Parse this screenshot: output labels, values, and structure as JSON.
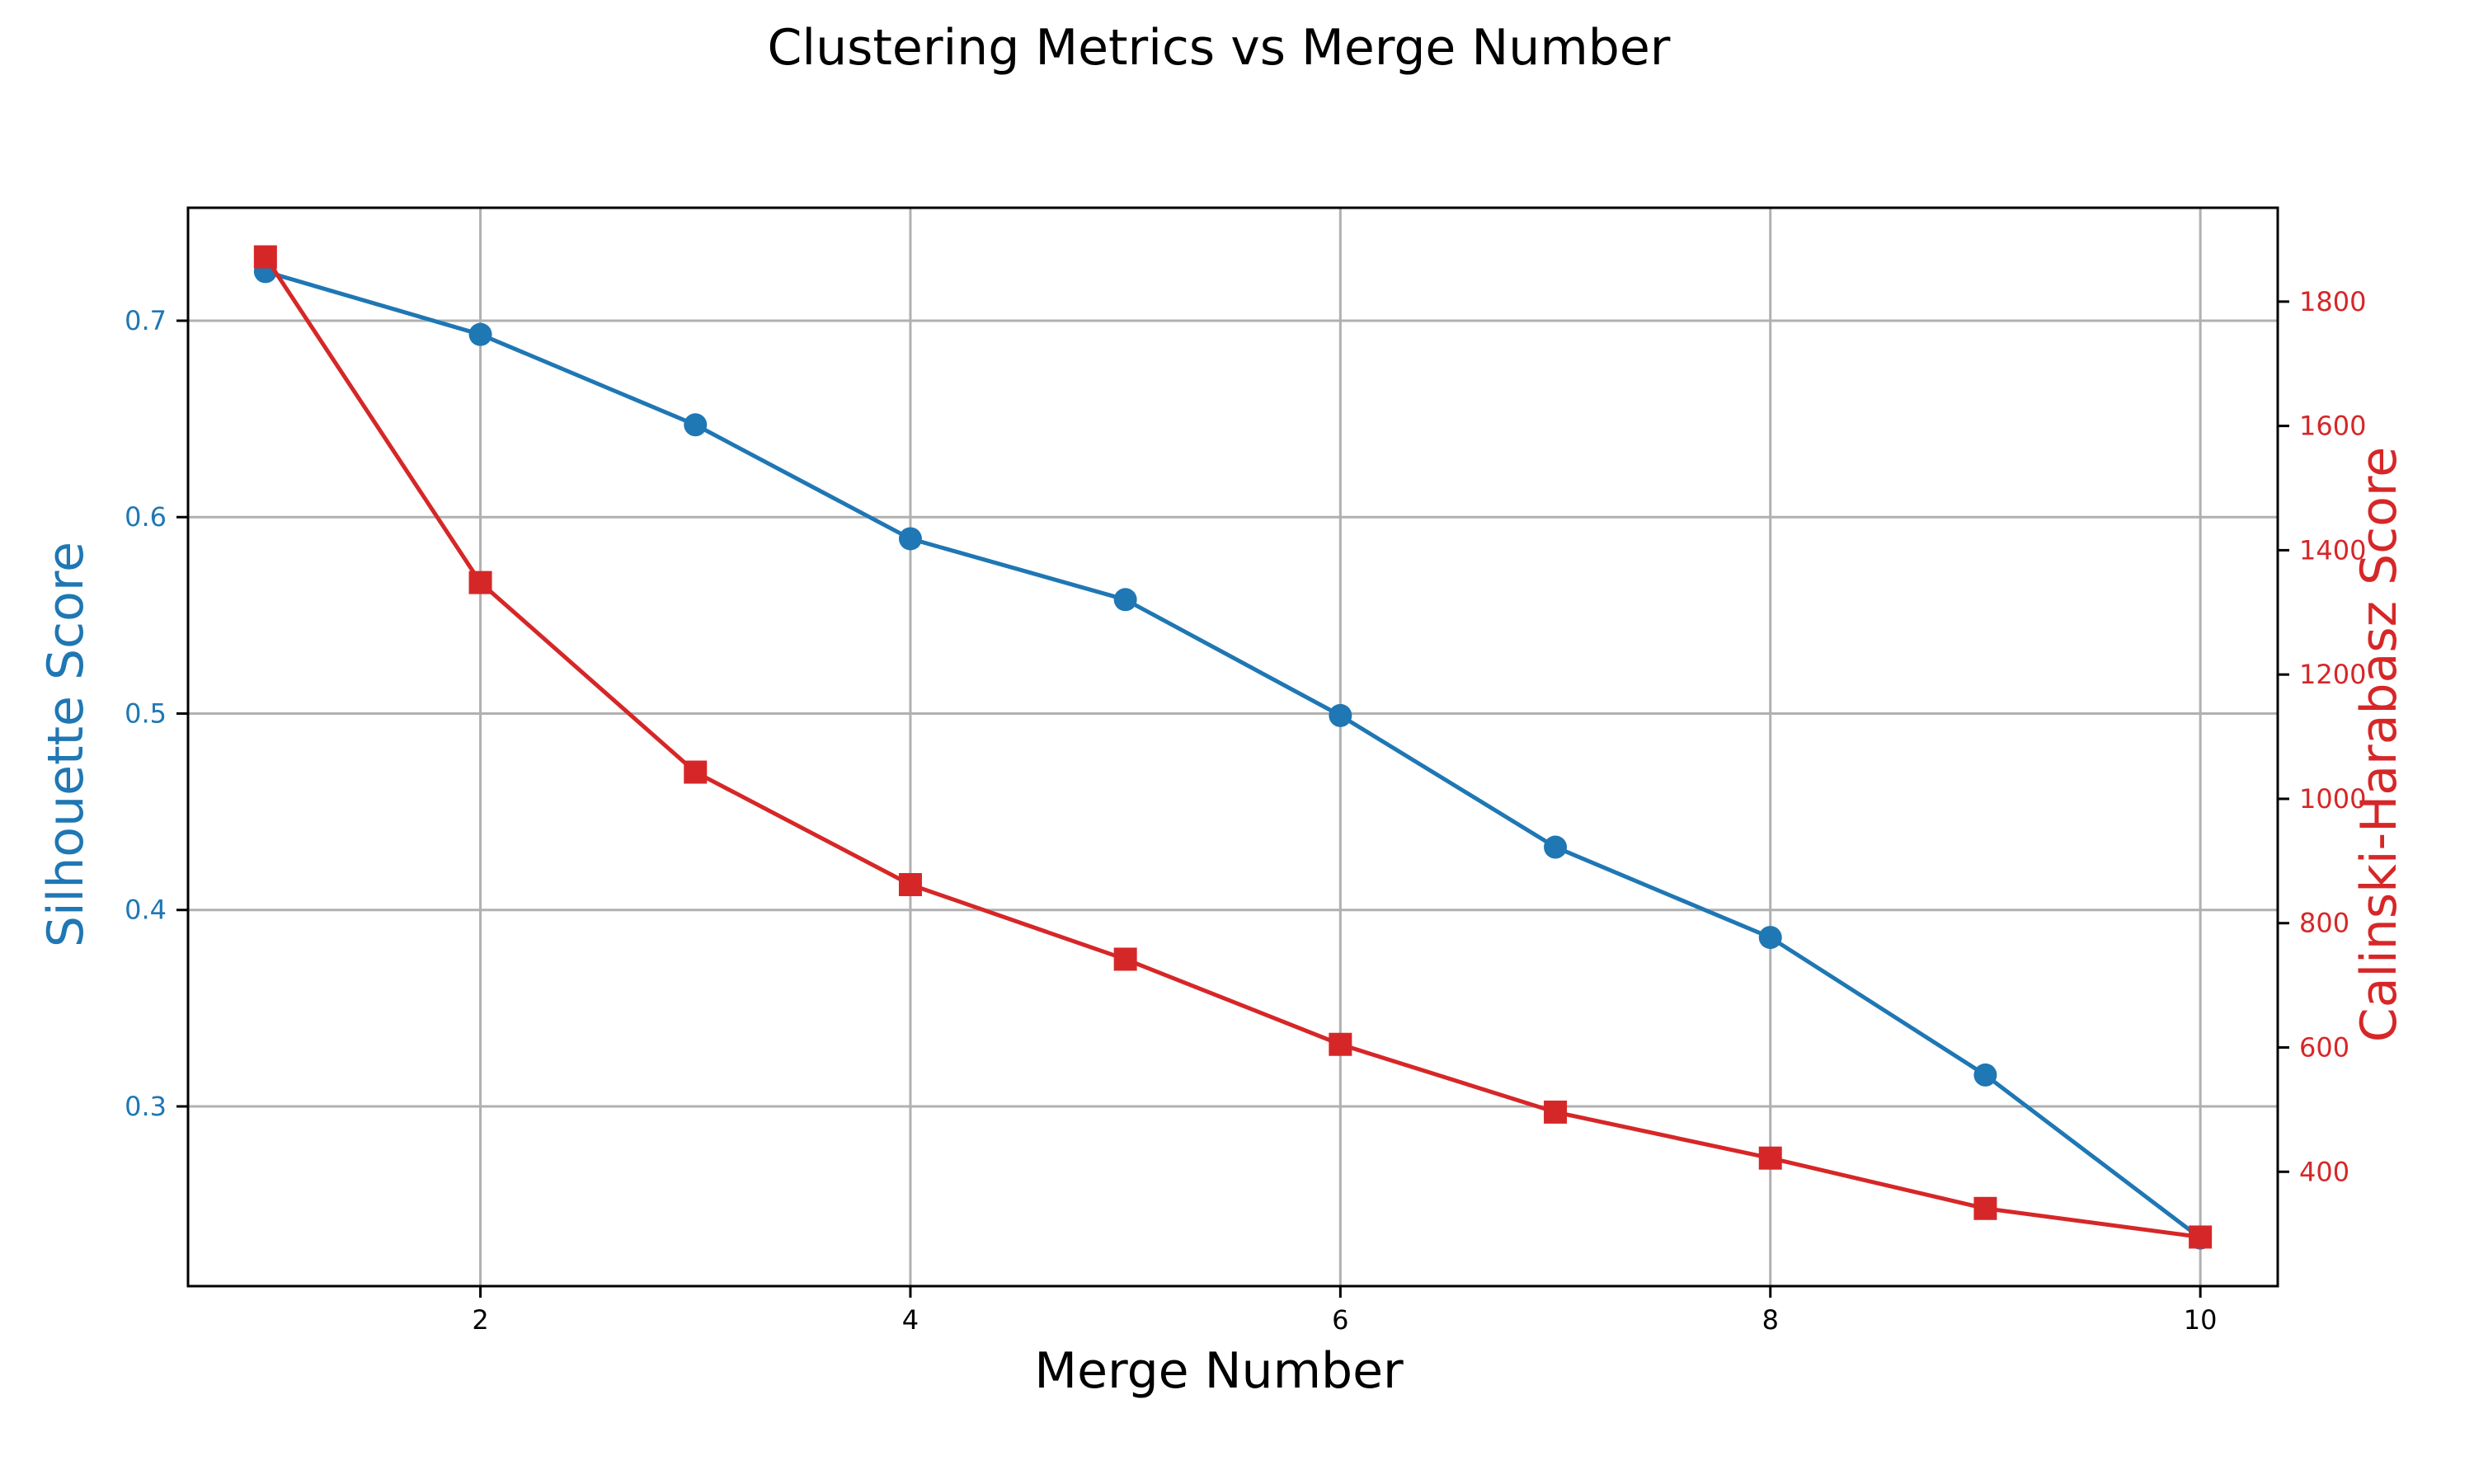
{
  "chart_data": {
    "type": "line",
    "title": "Clustering Metrics vs Merge Number",
    "xlabel": "Merge Number",
    "ylabel_left": "Silhouette Score",
    "ylabel_right": "Calinski-Harabasz Score",
    "x": [
      1,
      2,
      3,
      4,
      5,
      6,
      7,
      8,
      9,
      10
    ],
    "xlim": [
      0.64,
      10.36
    ],
    "x_ticks": [
      2,
      4,
      6,
      8,
      10
    ],
    "grid": true,
    "series": [
      {
        "name": "Silhouette Score",
        "axis": "left",
        "color": "#1f77b4",
        "marker": "circle",
        "values": [
          0.725,
          0.693,
          0.647,
          0.589,
          0.558,
          0.499,
          0.432,
          0.386,
          0.316,
          0.233
        ]
      },
      {
        "name": "Calinski-Harabasz Score",
        "axis": "right",
        "color": "#d62728",
        "marker": "square",
        "values": [
          1872,
          1348,
          1043,
          862,
          742,
          605,
          496,
          422,
          341,
          295
        ]
      }
    ],
    "y_left": {
      "lim": [
        0.2085,
        0.7575
      ],
      "ticks": [
        0.3,
        0.4,
        0.5,
        0.6,
        0.7
      ],
      "tick_labels": [
        "0.3",
        "0.4",
        "0.5",
        "0.6",
        "0.7"
      ],
      "color": "#1f77b4"
    },
    "y_right": {
      "lim": [
        216,
        1951
      ],
      "ticks": [
        400,
        600,
        800,
        1000,
        1200,
        1400,
        1600,
        1800
      ],
      "tick_labels": [
        "400",
        "600",
        "800",
        "1000",
        "1200",
        "1400",
        "1600",
        "1800"
      ],
      "color": "#d62728"
    }
  }
}
